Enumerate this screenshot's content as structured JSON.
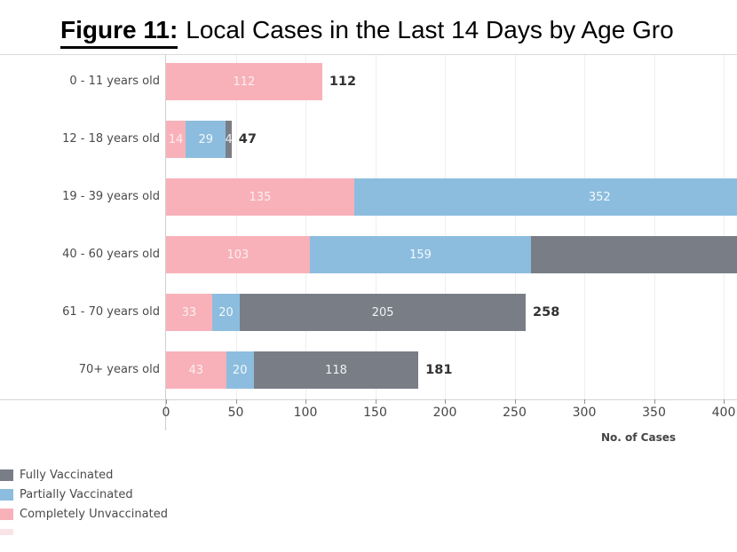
{
  "figure": {
    "title_prefix": "Figure 11:",
    "title_text": "Local Cases in the Last 14 Days by Age Gro"
  },
  "legend": {
    "items": [
      {
        "label": "Fully Vaccinated",
        "color": "#797E86"
      },
      {
        "label": "Partially Vaccinated",
        "color": "#8CBDDE"
      },
      {
        "label": "Completely Unvaccinated",
        "color": "#F8B1B9"
      }
    ],
    "partial_item_color": "#F6D9DC"
  },
  "chart_data": {
    "type": "bar",
    "orientation": "horizontal_stacked",
    "title": "Figure 11: Local Cases in the Last 14 Days by Age Gro",
    "xlabel": "No. of Cases",
    "x_ticks": [
      0,
      50,
      100,
      150,
      200,
      250,
      300,
      350,
      400
    ],
    "xlim_visible": [
      0,
      410
    ],
    "grid": true,
    "legend_position": "bottom-left",
    "categories": [
      "0 - 11 years old",
      "12 - 18 years old",
      "19 - 39 years old",
      "40 - 60 years old",
      "61 - 70 years old",
      "70+ years old"
    ],
    "series": [
      {
        "name": "Completely Unvaccinated",
        "color": "#F8B1B9",
        "label_color": "#FDEFF1",
        "values": [
          112,
          14,
          135,
          103,
          33,
          43
        ]
      },
      {
        "name": "Partially Vaccinated",
        "color": "#8CBDDE",
        "label_color": "#F4F9FC",
        "values": [
          0,
          29,
          352,
          159,
          20,
          20
        ]
      },
      {
        "name": "Fully Vaccinated",
        "color": "#797E86",
        "label_color": "#EFF1F4",
        "values": [
          0,
          4,
          null,
          null,
          205,
          118
        ]
      }
    ],
    "rows": [
      {
        "category": "0 - 11 years old",
        "segments": [
          {
            "s": 0,
            "value": 112,
            "label": "112"
          }
        ],
        "total": "112"
      },
      {
        "category": "12 - 18 years old",
        "segments": [
          {
            "s": 0,
            "value": 14,
            "label": "14"
          },
          {
            "s": 1,
            "value": 29,
            "label": "29"
          },
          {
            "s": 2,
            "value": 4,
            "label": "4"
          }
        ],
        "total": "47"
      },
      {
        "category": "19 - 39 years old",
        "segments": [
          {
            "s": 0,
            "value": 135,
            "label": "135"
          },
          {
            "s": 1,
            "value": 352,
            "label": "352"
          }
        ],
        "total": ""
      },
      {
        "category": "40 - 60 years old",
        "segments": [
          {
            "s": 0,
            "value": 103,
            "label": "103"
          },
          {
            "s": 1,
            "value": 159,
            "label": "159"
          },
          {
            "s": 2,
            "value": null,
            "label": ""
          }
        ],
        "total": ""
      },
      {
        "category": "61 - 70 years old",
        "segments": [
          {
            "s": 0,
            "value": 33,
            "label": "33"
          },
          {
            "s": 1,
            "value": 20,
            "label": "20"
          },
          {
            "s": 2,
            "value": 205,
            "label": "205"
          }
        ],
        "total": "258"
      },
      {
        "category": "70+ years old",
        "segments": [
          {
            "s": 0,
            "value": 43,
            "label": "43"
          },
          {
            "s": 1,
            "value": 20,
            "label": "20"
          },
          {
            "s": 2,
            "value": 118,
            "label": "118"
          }
        ],
        "total": "181"
      }
    ],
    "totals_shown": [
      "112",
      "47",
      "",
      "",
      "258",
      "181"
    ],
    "clipped_rows": [
      "19 - 39 years old",
      "40 - 60 years old"
    ]
  }
}
